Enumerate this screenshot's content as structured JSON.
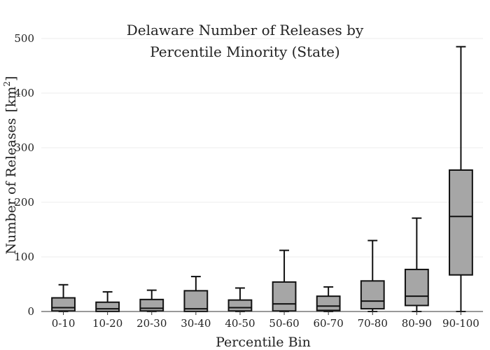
{
  "chart_data": {
    "type": "box",
    "title_lines": [
      "Delaware Number of Releases by",
      "Percentile Minority (State)"
    ],
    "xlabel": "Percentile Bin",
    "ylabel": "Number of Releases",
    "ylabel_unit": "[km",
    "ylabel_unit_sup": "2",
    "ylabel_unit_close": "]",
    "ylim": [
      0,
      500
    ],
    "yticks": [
      0,
      100,
      200,
      300,
      400,
      500
    ],
    "grid": true,
    "categories": [
      "0-10",
      "10-20",
      "20-30",
      "30-40",
      "40-50",
      "50-60",
      "60-70",
      "70-80",
      "80-90",
      "90-100"
    ],
    "boxes": [
      {
        "min": 0,
        "q1": 1,
        "median": 7,
        "q3": 25,
        "max": 49
      },
      {
        "min": 0,
        "q1": 0,
        "median": 5,
        "q3": 17,
        "max": 36
      },
      {
        "min": 0,
        "q1": 1,
        "median": 6,
        "q3": 22,
        "max": 39
      },
      {
        "min": 0,
        "q1": 0,
        "median": 5,
        "q3": 38,
        "max": 64
      },
      {
        "min": 0,
        "q1": 1,
        "median": 7,
        "q3": 21,
        "max": 43
      },
      {
        "min": 0,
        "q1": 1,
        "median": 14,
        "q3": 54,
        "max": 112
      },
      {
        "min": 0,
        "q1": 2,
        "median": 10,
        "q3": 28,
        "max": 45
      },
      {
        "min": 0,
        "q1": 5,
        "median": 19,
        "q3": 56,
        "max": 130
      },
      {
        "min": 0,
        "q1": 11,
        "median": 28,
        "q3": 77,
        "max": 171
      },
      {
        "min": 0,
        "q1": 67,
        "median": 174,
        "q3": 259,
        "max": 485
      }
    ]
  }
}
